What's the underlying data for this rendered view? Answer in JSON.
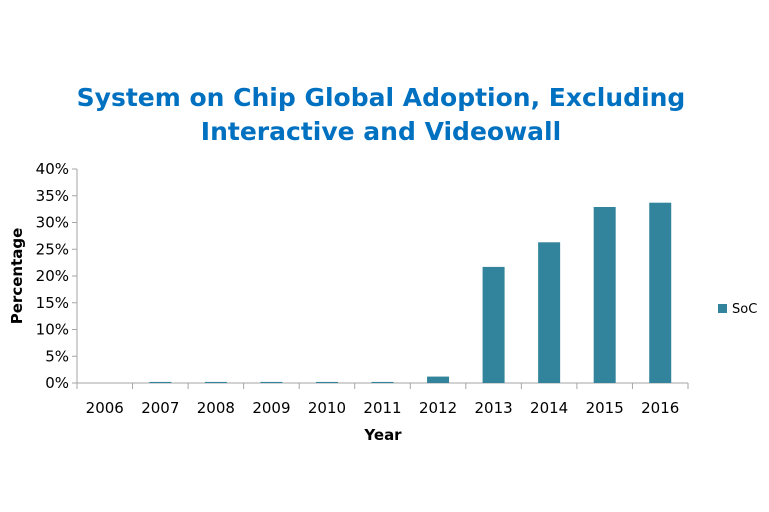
{
  "chart_data": {
    "type": "bar",
    "title_lines": [
      "System on Chip Global Adoption, Excluding",
      "Interactive and Videowall"
    ],
    "xlabel": "Year",
    "ylabel": "Percentage",
    "categories": [
      "2006",
      "2007",
      "2008",
      "2009",
      "2010",
      "2011",
      "2012",
      "2013",
      "2014",
      "2015",
      "2016"
    ],
    "series": [
      {
        "name": "SoC",
        "values": [
          0.0,
          0.2,
          0.2,
          0.2,
          0.2,
          0.2,
          1.2,
          21.7,
          26.3,
          32.9,
          33.7
        ]
      }
    ],
    "ylim": [
      0,
      40
    ],
    "yticks": [
      0,
      5,
      10,
      15,
      20,
      25,
      30,
      35,
      40
    ],
    "ytick_suffix": "%",
    "legend_position": "right",
    "grid": false,
    "colors": {
      "bar": "#31849b",
      "title": "#0070c0",
      "axis": "#a6a6a6"
    }
  }
}
